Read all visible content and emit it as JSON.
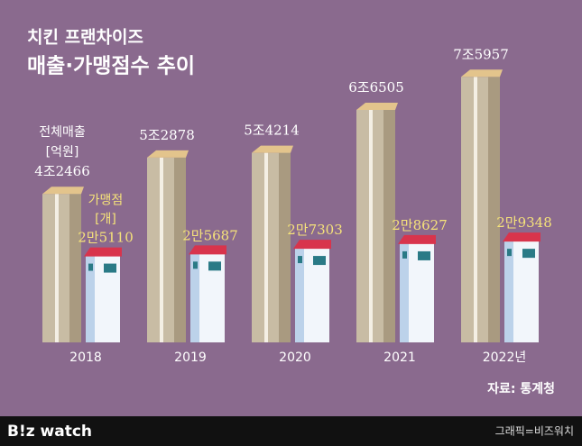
{
  "chart_data": {
    "type": "bar",
    "title": "치킨 프랜차이즈",
    "subtitle": "매출·가맹점수 추이",
    "categories": [
      "2018",
      "2019",
      "2020",
      "2021",
      "2022년"
    ],
    "series": [
      {
        "name": "전체매출",
        "unit": "[억원]",
        "color": "#c8bca4",
        "values": [
          42466,
          52878,
          54214,
          66505,
          75957
        ],
        "value_labels": [
          "4조2466",
          "5조2878",
          "5조4214",
          "6조6505",
          "7조5957"
        ]
      },
      {
        "name": "가맹점",
        "unit": "[개]",
        "color": "#f2f6fb",
        "values": [
          25110,
          25687,
          27303,
          28627,
          29348
        ],
        "value_labels": [
          "2만5110",
          "2만5687",
          "2만7303",
          "2만8627",
          "2만9348"
        ]
      }
    ],
    "source": "자료: 통계청",
    "logo": "B!z watch",
    "credit": "그래픽=비즈워치"
  }
}
